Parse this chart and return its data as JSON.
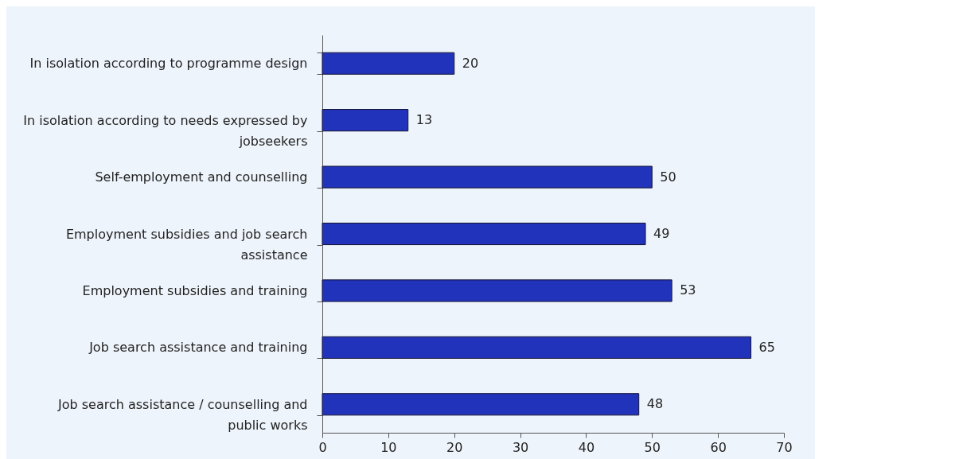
{
  "chart_data": {
    "type": "bar",
    "orientation": "horizontal",
    "categories": [
      "In isolation according to programme design",
      "In isolation according to needs expressed by jobseekers",
      "Self-employment and counselling",
      "Employment subsidies and job search assistance",
      "Employment subsidies and training",
      "Job search assistance and training",
      "Job search assistance / counselling and public works"
    ],
    "values": [
      20,
      13,
      50,
      49,
      53,
      65,
      48
    ],
    "color": "#2233bb",
    "xlim": [
      0,
      70
    ],
    "xticks": [
      0,
      10,
      20,
      30,
      40,
      50,
      60,
      70
    ],
    "data_labels": true,
    "grid": false
  }
}
